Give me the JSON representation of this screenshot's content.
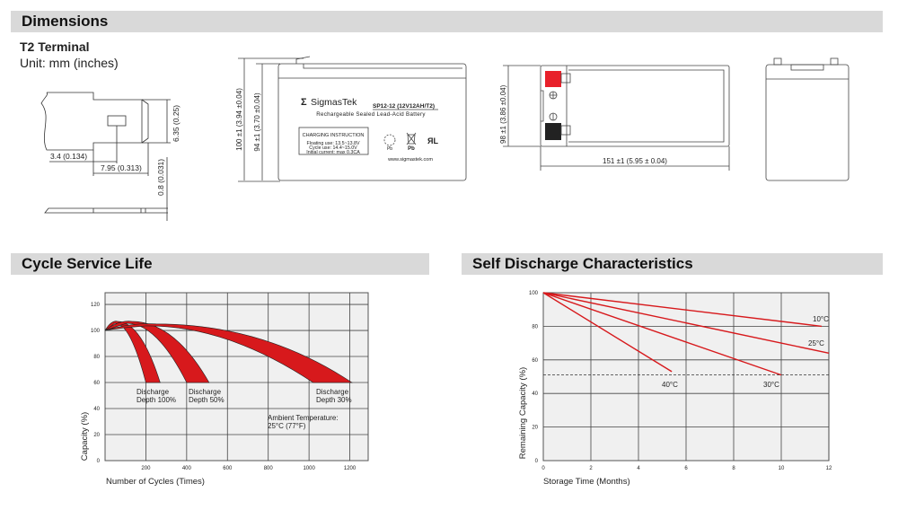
{
  "sections": {
    "dimensions": "Dimensions",
    "cycle_life": "Cycle Service Life",
    "self_discharge": "Self Discharge Characteristics"
  },
  "terminal": {
    "title": "T2 Terminal",
    "unit": "Unit: mm (inches)",
    "dim_width": "3.4 (0.134)",
    "dim_length": "7.95 (0.313)",
    "dim_height": "6.35 (0.25)",
    "dim_thickness": "0.8 (0.031)"
  },
  "battery_front": {
    "dim_total_height": "100 ±1 (3.94 ±0.04)",
    "dim_case_height": "94 ±1 (3.70 ±0.04)",
    "brand": "SigmasTek",
    "model": "SP12-12 (12V12AH/T2)",
    "description": "Rechargeable Sealed Lead-Acid Battery",
    "charging_title": "CHARGING INSTRUCTION",
    "charging_lines": [
      "Floating use: 13.5~13.8V",
      "Cycle use: 14.4~15.0V",
      "Initial current: max 0.3CA"
    ],
    "pb_label_1": "Pb",
    "pb_label_2": "Pb",
    "website": "www.sigmastek.com"
  },
  "battery_top": {
    "dim_width": "98 ±1 (3.86 ±0.04)",
    "dim_length": "151 ±1 (5.95 ± 0.04)",
    "positive_color": "#e8202a",
    "negative_color": "#222222"
  },
  "chart_data": [
    {
      "type": "area",
      "title": "Cycle Service Life",
      "xlabel": "Number of Cycles (Times)",
      "ylabel": "Capacity (%)",
      "xlim": [
        0,
        1290
      ],
      "ylim": [
        0,
        129
      ],
      "xticks": [
        200,
        400,
        600,
        800,
        1000,
        1200
      ],
      "yticks": [
        0,
        20,
        40,
        60,
        80,
        100,
        120
      ],
      "grid": true,
      "color": "#d7191c",
      "series": [
        {
          "name": "Discharge Depth 100%",
          "start": [
            0,
            100
          ],
          "peak": [
            60,
            107
          ],
          "end_low": [
            200,
            60
          ],
          "end_high": [
            270,
            60
          ]
        },
        {
          "name": "Discharge Depth 50%",
          "start": [
            0,
            100
          ],
          "peak": [
            130,
            107
          ],
          "end_low": [
            400,
            60
          ],
          "end_high": [
            510,
            60
          ]
        },
        {
          "name": "Discharge Depth 30%",
          "start": [
            0,
            100
          ],
          "peak": [
            250,
            105
          ],
          "end_low": [
            1020,
            60
          ],
          "end_high": [
            1210,
            60
          ]
        }
      ],
      "annotations": {
        "d100": [
          "Discharge",
          "Depth 100%"
        ],
        "d50": [
          "Discharge",
          "Depth 50%"
        ],
        "d30": [
          "Discharge",
          "Depth 30%"
        ],
        "ambient": [
          "Ambient Temperature:",
          "25°C (77°F)"
        ]
      }
    },
    {
      "type": "line",
      "title": "Self Discharge Characteristics",
      "xlabel": "Storage Time (Months)",
      "ylabel": "Remaining Capacity (%)",
      "xlim": [
        0,
        12
      ],
      "ylim": [
        0,
        100
      ],
      "xticks": [
        0,
        2,
        4,
        6,
        8,
        10,
        12
      ],
      "yticks": [
        0,
        20,
        40,
        60,
        80,
        100
      ],
      "grid": true,
      "reference_line": 51,
      "color": "#d7191c",
      "series": [
        {
          "name": "10°C",
          "x": [
            0,
            11.7
          ],
          "y": [
            100,
            80
          ]
        },
        {
          "name": "25°C",
          "x": [
            0,
            12
          ],
          "y": [
            100,
            64
          ]
        },
        {
          "name": "30°C",
          "x": [
            0,
            10
          ],
          "y": [
            100,
            51
          ]
        },
        {
          "name": "40°C",
          "x": [
            0,
            5.4
          ],
          "y": [
            100,
            53
          ]
        }
      ]
    }
  ]
}
